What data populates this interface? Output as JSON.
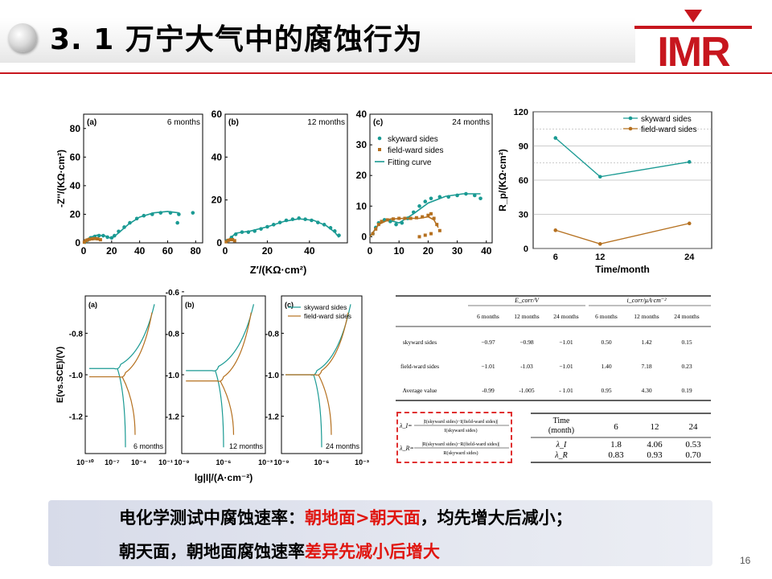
{
  "slide": {
    "title": "3. 1 万宁大气中的腐蚀行为",
    "logo_text": "IMR",
    "page_number": "16",
    "bottom_line1": {
      "part1": "电化学测试中腐蚀速率：",
      "part2": "朝地面>朝天面",
      "part3": "，均先增大后减小；"
    },
    "bottom_line2": {
      "part1": "朝天面，朝地面腐蚀速率",
      "part2": "差异先减小后增大"
    },
    "colors": {
      "accent": "#c7161e",
      "teal": "#1a9a93",
      "brown": "#b5701f",
      "highlight": "#e0150f"
    }
  },
  "chart_data": [
    {
      "type": "scatter",
      "panel": "(a)",
      "label": "6 months",
      "ylabel": "-Z''/(KΩ·cm²)",
      "xlim": [
        0,
        85
      ],
      "ylim": [
        0,
        90
      ],
      "xticks": [
        "0",
        "20",
        "40",
        "60",
        "80"
      ],
      "yticks": [
        "0",
        "20",
        "40",
        "60",
        "80"
      ],
      "series": [
        {
          "color": "teal",
          "points": [
            [
              1,
              0.5
            ],
            [
              3,
              2
            ],
            [
              5,
              3.5
            ],
            [
              8,
              4.5
            ],
            [
              11,
              5
            ],
            [
              14,
              5
            ],
            [
              17,
              4
            ],
            [
              20,
              3.5
            ],
            [
              22,
              5
            ],
            [
              25,
              8
            ],
            [
              29,
              11
            ],
            [
              33,
              14
            ],
            [
              38,
              17
            ],
            [
              43,
              19
            ],
            [
              49,
              20
            ],
            [
              55,
              21
            ],
            [
              62,
              21
            ],
            [
              68,
              20
            ],
            [
              78,
              21
            ],
            [
              67,
              14
            ]
          ],
          "fit": [
            [
              0,
              0
            ],
            [
              5,
              4
            ],
            [
              10,
              5.5
            ],
            [
              15,
              5
            ],
            [
              20,
              3
            ],
            [
              25,
              7
            ],
            [
              32,
              13
            ],
            [
              40,
              18
            ],
            [
              50,
              21
            ],
            [
              60,
              22
            ],
            [
              68,
              21
            ]
          ]
        },
        {
          "color": "brown",
          "points": [
            [
              0.5,
              0.5
            ],
            [
              1.5,
              1.5
            ],
            [
              2.5,
              2
            ],
            [
              4,
              2.5
            ],
            [
              6,
              2.8
            ],
            [
              8,
              3
            ],
            [
              10,
              2.8
            ],
            [
              12,
              2.2
            ]
          ],
          "fit": [
            [
              0,
              0
            ],
            [
              3,
              2.2
            ],
            [
              6,
              3
            ],
            [
              9,
              3
            ],
            [
              12,
              2
            ]
          ]
        }
      ]
    },
    {
      "type": "scatter",
      "panel": "(b)",
      "label": "12 months",
      "xlim": [
        0,
        58
      ],
      "ylim": [
        0,
        60
      ],
      "xticks": [
        "0",
        "20",
        "40"
      ],
      "yticks": [
        "0",
        "20",
        "40",
        "60"
      ],
      "series": [
        {
          "color": "teal",
          "points": [
            [
              1,
              1
            ],
            [
              3,
              2.5
            ],
            [
              5,
              4
            ],
            [
              8,
              5
            ],
            [
              11,
              5
            ],
            [
              14,
              5.5
            ],
            [
              17,
              6.5
            ],
            [
              20,
              7.5
            ],
            [
              23,
              8.5
            ],
            [
              26,
              9.5
            ],
            [
              29,
              10.5
            ],
            [
              32,
              11
            ],
            [
              35,
              11.5
            ],
            [
              38,
              11
            ],
            [
              41,
              10.5
            ],
            [
              44,
              9.5
            ],
            [
              47,
              8.5
            ],
            [
              50,
              7
            ],
            [
              52,
              5.5
            ],
            [
              54,
              3.5
            ]
          ],
          "fit": [
            [
              0,
              0
            ],
            [
              5,
              4.5
            ],
            [
              12,
              5.5
            ],
            [
              20,
              7.5
            ],
            [
              28,
              10
            ],
            [
              35,
              11.2
            ],
            [
              42,
              10.5
            ],
            [
              48,
              8
            ],
            [
              52,
              5
            ],
            [
              54,
              2.5
            ]
          ]
        },
        {
          "color": "brown",
          "points": [
            [
              0.5,
              0.5
            ],
            [
              1.5,
              1.2
            ],
            [
              2.5,
              1.5
            ],
            [
              3.5,
              1.5
            ],
            [
              4.5,
              1
            ]
          ],
          "fit": [
            [
              0,
              0
            ],
            [
              2,
              1.4
            ],
            [
              4,
              1.3
            ],
            [
              5,
              0.5
            ]
          ]
        }
      ]
    },
    {
      "type": "scatter",
      "panel": "(c)",
      "label": "24 months",
      "xlim": [
        0,
        42
      ],
      "ylim": [
        -2,
        40
      ],
      "xticks": [
        "0",
        "10",
        "20",
        "30",
        "40"
      ],
      "yticks": [
        "0",
        "10",
        "20",
        "30",
        "40"
      ],
      "legend": [
        "skyward sides",
        "field-ward sides",
        "Fitting curve"
      ],
      "series": [
        {
          "name": "skyward sides",
          "color": "teal",
          "points": [
            [
              1,
              1
            ],
            [
              2,
              3
            ],
            [
              3,
              4.5
            ],
            [
              5,
              5.5
            ],
            [
              7,
              5
            ],
            [
              9,
              4
            ],
            [
              11,
              4.5
            ],
            [
              13,
              6
            ],
            [
              15,
              8
            ],
            [
              17,
              10
            ],
            [
              19,
              11.5
            ],
            [
              21,
              12.5
            ],
            [
              24,
              13
            ],
            [
              27,
              13
            ],
            [
              30,
              13.5
            ],
            [
              33,
              14
            ],
            [
              36,
              13.5
            ],
            [
              38,
              12.5
            ]
          ],
          "fit": [
            [
              0,
              0
            ],
            [
              3,
              4
            ],
            [
              6,
              5.5
            ],
            [
              10,
              4.5
            ],
            [
              15,
              7.5
            ],
            [
              20,
              11
            ],
            [
              26,
              13.2
            ],
            [
              32,
              14
            ],
            [
              38,
              14
            ]
          ]
        },
        {
          "name": "field-ward sides",
          "color": "brown",
          "points": [
            [
              1,
              1
            ],
            [
              2,
              2.5
            ],
            [
              3,
              4
            ],
            [
              4,
              5
            ],
            [
              6,
              5.5
            ],
            [
              8,
              5.8
            ],
            [
              10,
              6
            ],
            [
              12,
              6
            ],
            [
              14,
              6
            ],
            [
              16,
              6.2
            ],
            [
              18,
              6.5
            ],
            [
              20,
              7
            ],
            [
              21,
              7.5
            ],
            [
              22,
              6
            ],
            [
              23,
              4
            ],
            [
              24,
              2
            ],
            [
              21,
              1
            ],
            [
              19,
              0.5
            ],
            [
              17,
              0
            ]
          ],
          "fit": [
            [
              0,
              0
            ],
            [
              3,
              4
            ],
            [
              7,
              5.8
            ],
            [
              12,
              6
            ],
            [
              17,
              6
            ],
            [
              20,
              6.5
            ],
            [
              22,
              5.5
            ],
            [
              23.5,
              3
            ]
          ]
        }
      ]
    },
    {
      "type": "line",
      "ylabel": "R_p/(KΩ·cm²)",
      "xlabel": "Time/month",
      "x": [
        6,
        12,
        24
      ],
      "xticks": [
        "6",
        "12",
        "24"
      ],
      "ylim": [
        0,
        120
      ],
      "yticks": [
        "0",
        "30",
        "60",
        "90",
        "120"
      ],
      "legend": [
        "skyward sides",
        "field-ward sides"
      ],
      "series": [
        {
          "name": "skyward sides",
          "color": "teal",
          "values": [
            97,
            63,
            76
          ]
        },
        {
          "name": "field-ward sides",
          "color": "brown",
          "values": [
            16,
            4,
            22
          ]
        }
      ],
      "dotted_lines": [
        105,
        75
      ]
    },
    {
      "type": "line",
      "panel": "(a)",
      "label": "6 months",
      "ylabel": "E(vs.SCE)/(V)",
      "xlabel": "lg|I|/(A·cm⁻²)",
      "ylim": [
        -1.38,
        -0.62
      ],
      "yticks": [
        "-1.2",
        "-1.0",
        "-0.8"
      ],
      "xticks": [
        "10⁻¹⁰",
        "10⁻⁷",
        "10⁻⁴",
        "10⁻¹"
      ]
    },
    {
      "type": "line",
      "panel": "(b)",
      "label": "12 months",
      "ylim": [
        -1.38,
        -0.62
      ],
      "yticks": [
        "-1.2",
        "-1.0",
        "-0.8",
        "-0.6"
      ],
      "xticks": [
        "10⁻⁹",
        "10⁻⁶",
        "10⁻³"
      ]
    },
    {
      "type": "line",
      "panel": "(c)",
      "label": "24 months",
      "ylim": [
        -1.38,
        -0.62
      ],
      "yticks": [
        "-1.2",
        "-1.0",
        "-0.8"
      ],
      "xticks": [
        "10⁻⁹",
        "10⁻⁶",
        "10⁻³"
      ],
      "legend": [
        "skyward sides",
        "field-ward sides"
      ]
    },
    {
      "type": "table",
      "group_headers": [
        "E_corr/V",
        "i_corr/μA·cm⁻²"
      ],
      "columns": [
        "6 months",
        "12 months",
        "24 months",
        "6 months",
        "12 months",
        "24 months"
      ],
      "rows": [
        {
          "label": "skyward sides",
          "values": [
            "−0.97",
            "−0.98",
            "−1.01",
            "0.50",
            "1.42",
            "0.15"
          ]
        },
        {
          "label": "field-ward sides",
          "values": [
            "−1.01",
            "-1.03",
            "−1.01",
            "1.40",
            "7.18",
            "0.23"
          ]
        },
        {
          "label": "Average value",
          "values": [
            "-0.99",
            "-1.005",
            "- 1.01",
            "0.95",
            "4.30",
            "0.19"
          ]
        }
      ]
    },
    {
      "type": "table",
      "header": [
        "Time\n(month)",
        "6",
        "12",
        "24"
      ],
      "rows": [
        {
          "label": "λ_I",
          "values": [
            "1.8",
            "4.06",
            "0.53"
          ]
        },
        {
          "label": "λ_R",
          "values": [
            "0.83",
            "0.93",
            "0.70"
          ]
        }
      ],
      "formula": {
        "lambda_i": "λ_I=",
        "num_i": "|I(skyward sides)−I(field-ward sides)|",
        "den_i": "I(skyward sides)",
        "lambda_r": "λ_R=",
        "num_r": "|R(skyward sides)−R(field-ward sides)|",
        "den_r": "R(skyward sides)"
      }
    }
  ]
}
